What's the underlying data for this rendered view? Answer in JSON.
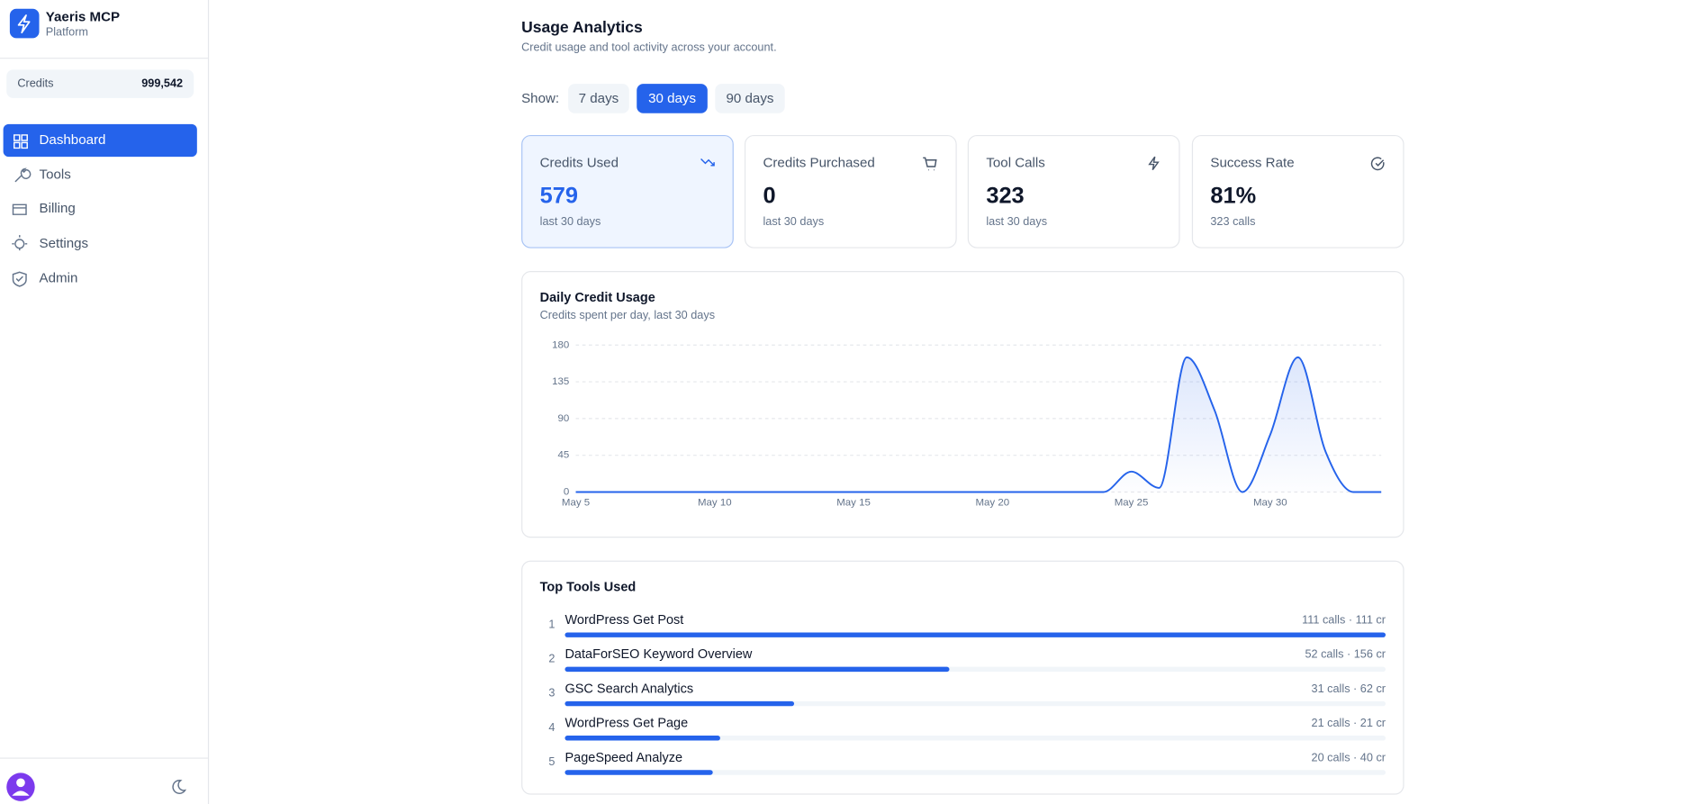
{
  "sidebar": {
    "brand": "Yaeris MCP",
    "brand_sub": "Platform",
    "credits_label": "Credits",
    "credits_value": "999,542",
    "nav": [
      "Dashboard",
      "Tools",
      "Billing",
      "Settings",
      "Admin"
    ]
  },
  "header": {
    "title": "Usage Analytics",
    "subtitle": "Credit usage and tool activity across your account."
  },
  "filter": {
    "label": "Show:",
    "options": [
      "7 days",
      "30 days",
      "90 days"
    ]
  },
  "stats": [
    {
      "label": "Credits Used",
      "value": "579",
      "sub": "last 30 days"
    },
    {
      "label": "Credits Purchased",
      "value": "0",
      "sub": "last 30 days"
    },
    {
      "label": "Tool Calls",
      "value": "323",
      "sub": "last 30 days"
    },
    {
      "label": "Success Rate",
      "value": "81%",
      "sub": "323 calls"
    }
  ],
  "chart_data": {
    "type": "area",
    "title": "Daily Credit Usage",
    "subtitle": "Credits spent per day, last 30 days",
    "categories": [
      "May 5",
      null,
      null,
      null,
      null,
      "May 10",
      null,
      null,
      null,
      null,
      "May 15",
      null,
      null,
      null,
      null,
      "May 20",
      null,
      null,
      null,
      null,
      "May 25",
      null,
      null,
      null,
      null,
      "May 30",
      null,
      null,
      null,
      null
    ],
    "series": [
      {
        "name": "Credits",
        "color": "#2563eb",
        "values": [
          0,
          0,
          0,
          0,
          0,
          0,
          0,
          0,
          0,
          0,
          0,
          0,
          0,
          0,
          0,
          0,
          0,
          0,
          0,
          0,
          25,
          5,
          165,
          100,
          0,
          70,
          165,
          49,
          0,
          0
        ]
      }
    ],
    "ylim": [
      0,
      180
    ],
    "yticks": [
      0,
      45,
      90,
      135,
      180
    ],
    "grid": true
  },
  "top_tools": {
    "title": "Top Tools Used",
    "items": [
      {
        "rank": "1",
        "name": "WordPress Get Post",
        "calls": 111,
        "label": "111 calls · 111 cr"
      },
      {
        "rank": "2",
        "name": "DataForSEO Keyword Overview",
        "calls": 52,
        "label": "52 calls · 156 cr"
      },
      {
        "rank": "3",
        "name": "GSC Search Analytics",
        "calls": 31,
        "label": "31 calls · 62 cr"
      },
      {
        "rank": "4",
        "name": "WordPress Get Page",
        "calls": 21,
        "label": "21 calls · 21 cr"
      },
      {
        "rank": "5",
        "name": "PageSpeed Analyze",
        "calls": 20,
        "label": "20 calls · 40 cr"
      }
    ]
  }
}
